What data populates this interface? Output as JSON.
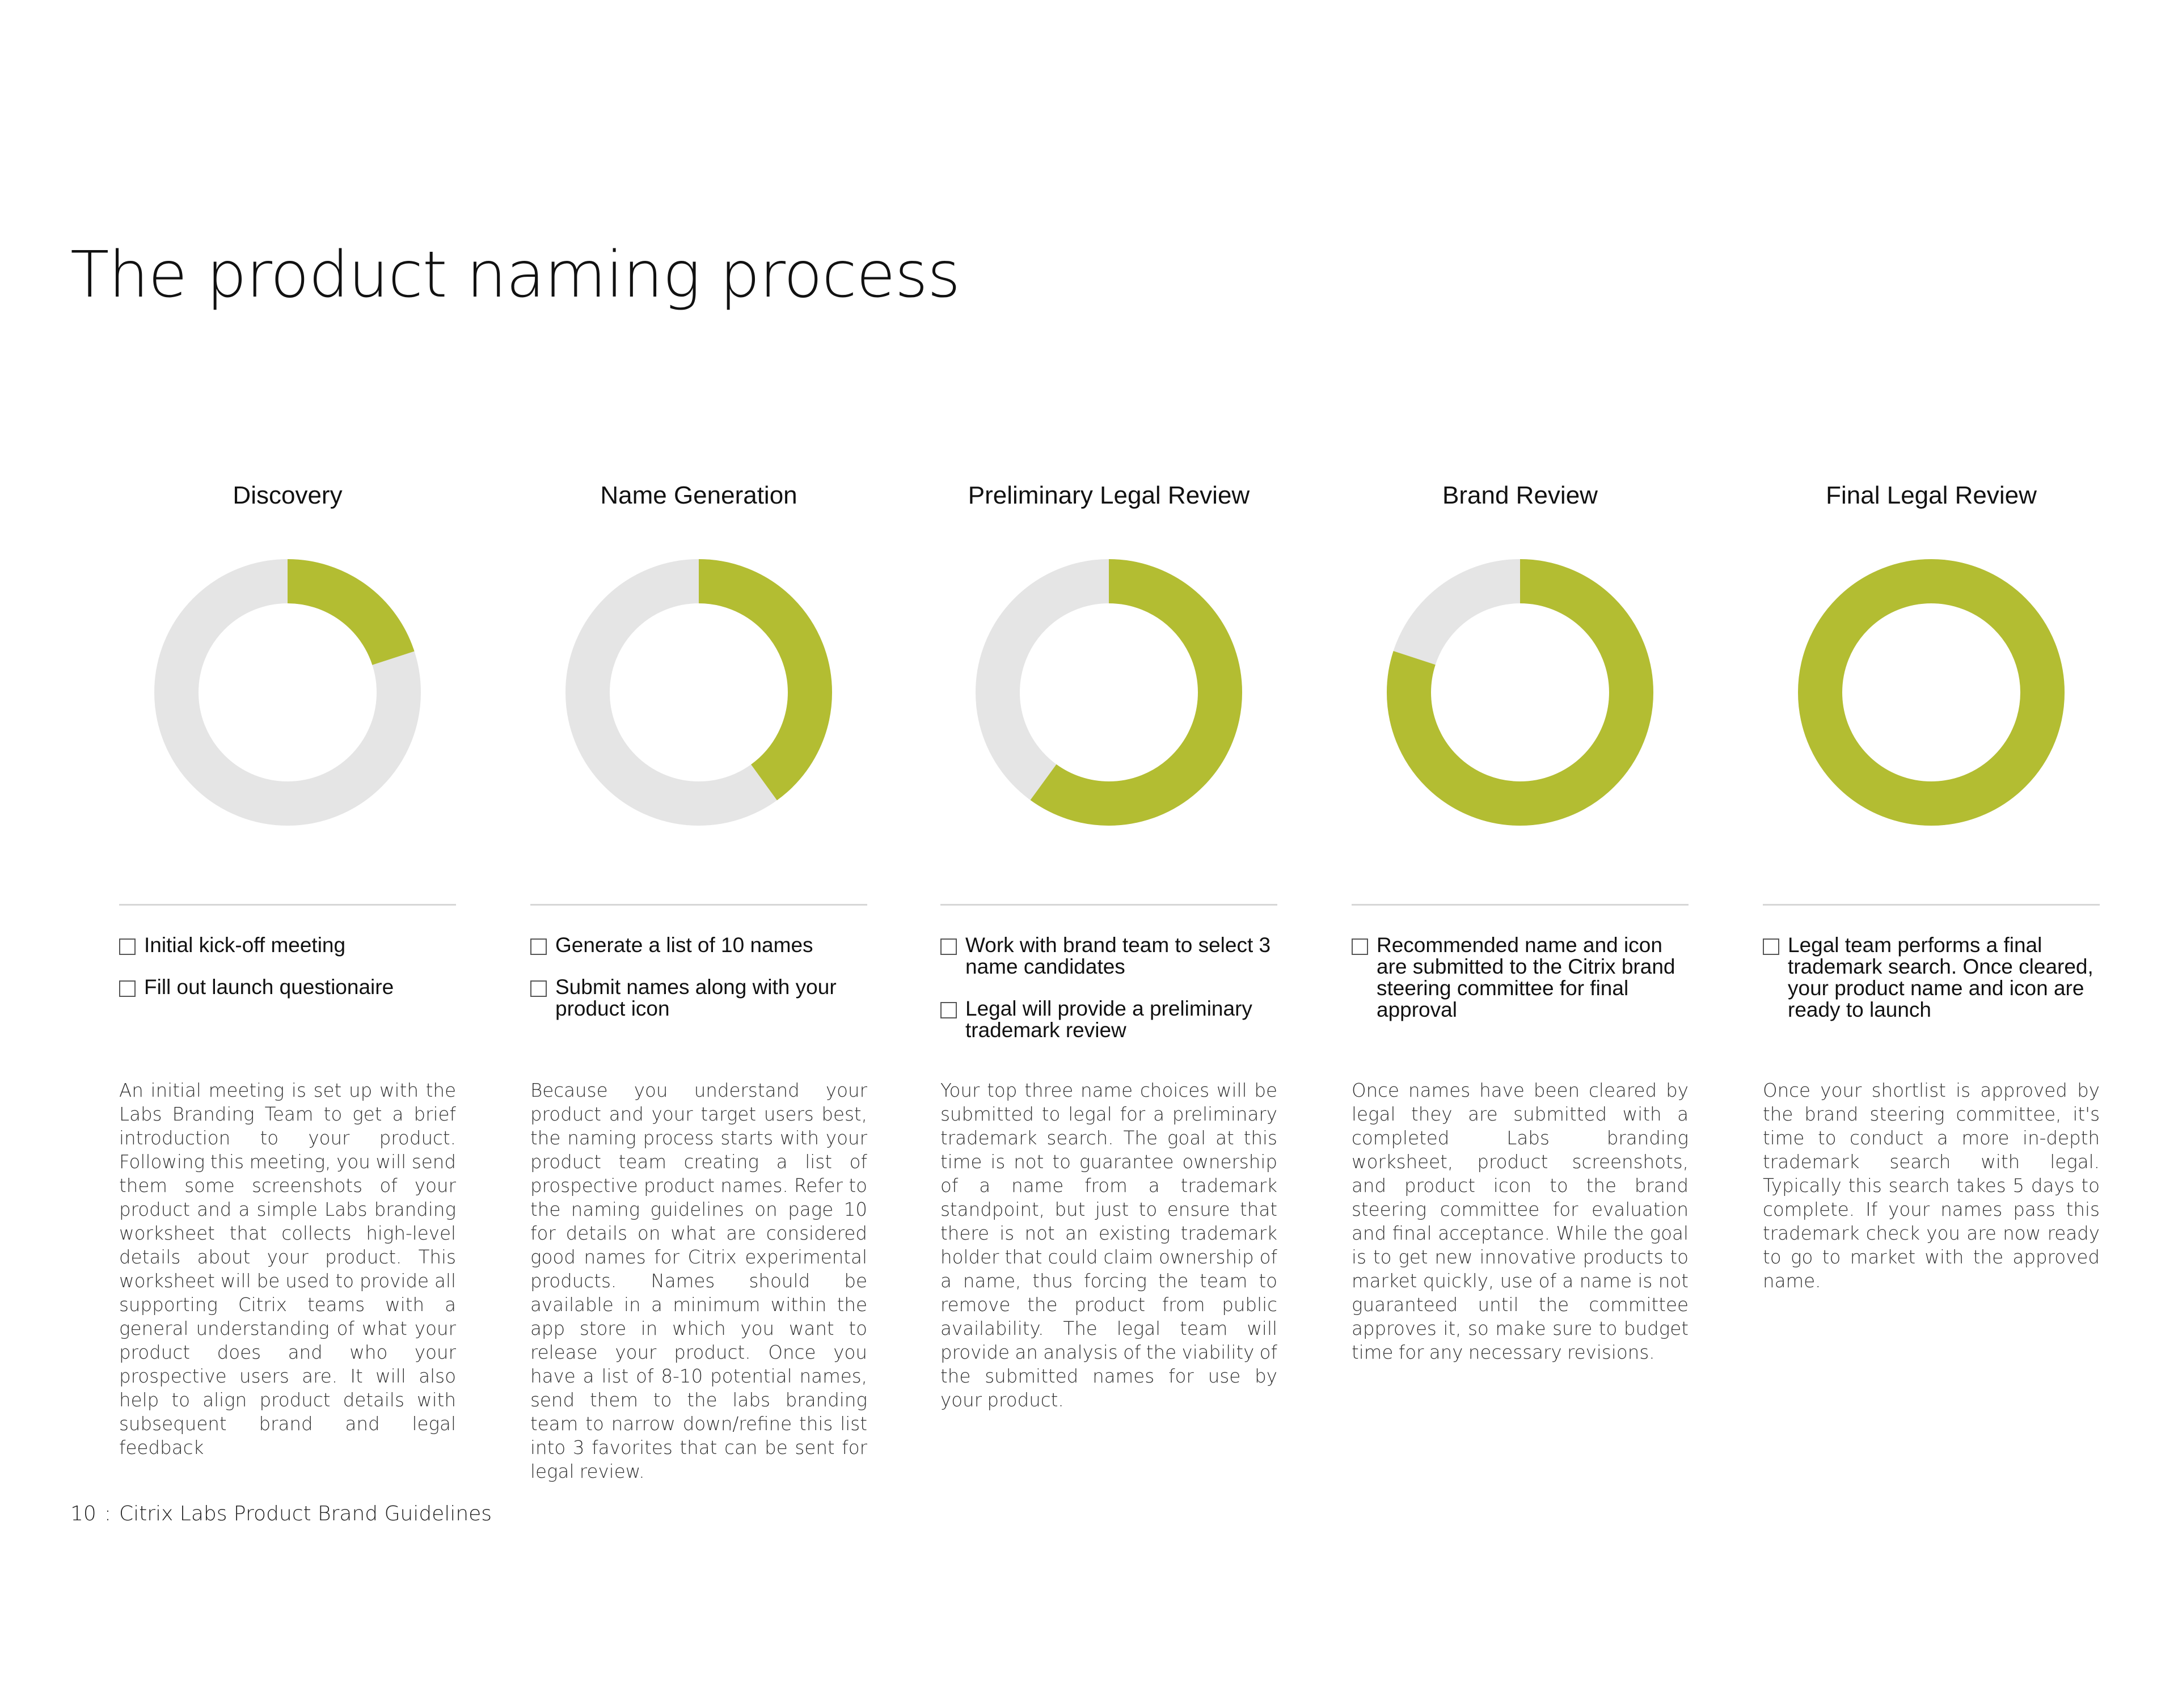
{
  "page": {
    "title": "The product naming process"
  },
  "colors": {
    "progress": "#b3bd32",
    "track": "#e5e5e5"
  },
  "stages": [
    {
      "title": "Discovery",
      "progress": 0.2,
      "checklist": [
        "Initial kick-off meeting",
        "Fill out launch questionaire"
      ],
      "description": "An initial meeting is set up with the Labs Branding Team to get a brief introduction to your product. Following this meeting, you will send them some screenshots of your product and a simple Labs branding worksheet that collects high-level details about your product. This worksheet will be used to provide all supporting Citrix teams with a general understanding of what your product does and who your prospective users are. It will also help to align product details with subsequent brand and legal feedback"
    },
    {
      "title": "Name Generation",
      "progress": 0.4,
      "checklist": [
        "Generate a list of 10 names",
        "Submit names along with your product icon"
      ],
      "description": "Because you understand your product and your target users best, the naming process starts with your product team creating a list of prospective product names. Refer to the naming guidelines on page 10 for details on what are considered good names for Citrix experimental products. Names should be available in a minimum within the app store in which you want to release your product. Once you have a list of 8-10 potential names, send them to the labs branding team to narrow down/refine this list into 3 favorites that can be sent for legal review."
    },
    {
      "title": "Preliminary Legal Review",
      "progress": 0.6,
      "checklist": [
        "Work with brand team to select 3 name candidates",
        "Legal will provide a preliminary trademark review"
      ],
      "description": "Your top three name choices will be submitted to legal for a preliminary trademark search. The goal at this time is not to guarantee ownership of a name from a trademark standpoint, but just to ensure that there is not an existing trademark holder that could claim ownership of a name, thus forcing the team to remove the product from public availability. The legal team will provide an analysis of the viability of the submitted names for use by your product."
    },
    {
      "title": "Brand Review",
      "progress": 0.8,
      "checklist": [
        "Recommended name and icon are submitted to the Citrix brand steering committee for final approval"
      ],
      "description": "Once names have been cleared by legal they are submitted with a completed Labs branding worksheet, product screenshots, and product icon to the brand steering committee for evaluation and final acceptance. While the goal is to get new innovative products to market quickly, use of a name is not guaranteed until the committee approves it, so make sure to budget time for any necessary revisions."
    },
    {
      "title": "Final Legal Review",
      "progress": 1.0,
      "checklist": [
        "Legal team performs a final trademark search. Once cleared, your product name and icon are ready to launch"
      ],
      "description": "Once your shortlist is approved by the brand steering committee, it's time to conduct a more in-depth trademark search with legal. Typically this search takes 5 days to complete. If your names pass this trademark check you are now ready to go to market with the approved name."
    }
  ],
  "footer": {
    "page_number": "10",
    "separator": ":",
    "document_title": "Citrix Labs Product Brand Guidelines"
  }
}
